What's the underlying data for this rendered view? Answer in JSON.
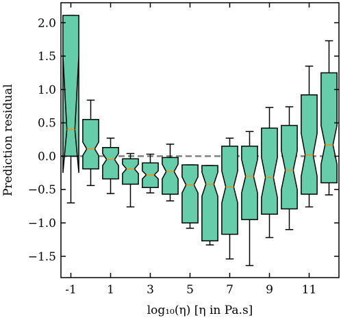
{
  "chart_data": {
    "type": "boxplot",
    "notched": true,
    "xlabel": "log₁₀(η)  [η in Pa.s]",
    "ylabel": "Prediction residual",
    "xlim": [
      -1.5,
      12.5
    ],
    "ylim": [
      -1.82,
      2.3
    ],
    "x_ticks": [
      -1,
      1,
      3,
      5,
      7,
      9,
      11
    ],
    "x_tick_labels": [
      "-1",
      "1",
      "3",
      "5",
      "7",
      "9",
      "11"
    ],
    "y_ticks": [
      -1.5,
      -1.0,
      -0.5,
      0.0,
      0.5,
      1.0,
      1.5,
      2.0
    ],
    "y_tick_labels": [
      "−1.5",
      "−1.0",
      "−0.5",
      "0.0",
      "0.5",
      "1.0",
      "1.5",
      "2.0"
    ],
    "reference_line_y": 0,
    "colors": {
      "box_fill": "#66cdaa",
      "median": "#ff8c00",
      "outline": "#000000",
      "reference_line": "#808080"
    },
    "boxes": [
      {
        "x": -1,
        "whislo": -0.7,
        "q1": 0.0,
        "notch_lo": 1.5,
        "med": 0.4,
        "notch_hi": -0.25,
        "q3": 2.11,
        "whishi": 2.11
      },
      {
        "x": 0,
        "whislo": -0.44,
        "q1": -0.19,
        "notch_lo": 0.01,
        "med": 0.11,
        "notch_hi": 0.21,
        "q3": 0.55,
        "whishi": 0.84
      },
      {
        "x": 1,
        "whislo": -0.56,
        "q1": -0.34,
        "notch_lo": -0.14,
        "med": -0.05,
        "notch_hi": 0.04,
        "q3": 0.13,
        "whishi": 0.27
      },
      {
        "x": 2,
        "whislo": -0.76,
        "q1": -0.42,
        "notch_lo": -0.26,
        "med": -0.19,
        "notch_hi": -0.12,
        "q3": -0.04,
        "whishi": 0.04
      },
      {
        "x": 3,
        "whislo": -0.55,
        "q1": -0.47,
        "notch_lo": -0.34,
        "med": -0.28,
        "notch_hi": -0.22,
        "q3": -0.1,
        "whishi": 0.03
      },
      {
        "x": 4,
        "whislo": -0.67,
        "q1": -0.57,
        "notch_lo": -0.34,
        "med": -0.23,
        "notch_hi": -0.12,
        "q3": -0.02,
        "whishi": 0.18
      },
      {
        "x": 5,
        "whislo": -1.08,
        "q1": -1.0,
        "notch_lo": -0.55,
        "med": -0.43,
        "notch_hi": -0.31,
        "q3": -0.13,
        "whishi": -0.13
      },
      {
        "x": 6,
        "whislo": -1.33,
        "q1": -1.27,
        "notch_lo": -0.6,
        "med": -0.42,
        "notch_hi": -0.24,
        "q3": -0.14,
        "whishi": -0.14
      },
      {
        "x": 7,
        "whislo": -1.54,
        "q1": -1.17,
        "notch_lo": -0.7,
        "med": -0.46,
        "notch_hi": -0.22,
        "q3": 0.15,
        "whishi": 0.27
      },
      {
        "x": 8,
        "whislo": -1.64,
        "q1": -0.95,
        "notch_lo": -0.55,
        "med": -0.3,
        "notch_hi": -0.05,
        "q3": 0.15,
        "whishi": 0.37
      },
      {
        "x": 9,
        "whislo": -1.22,
        "q1": -0.87,
        "notch_lo": -0.62,
        "med": -0.32,
        "notch_hi": -0.02,
        "q3": 0.42,
        "whishi": 0.73
      },
      {
        "x": 10,
        "whislo": -1.1,
        "q1": -0.79,
        "notch_lo": -0.5,
        "med": -0.21,
        "notch_hi": 0.08,
        "q3": 0.46,
        "whishi": 0.74
      },
      {
        "x": 11,
        "whislo": -0.76,
        "q1": -0.57,
        "notch_lo": -0.3,
        "med": 0.02,
        "notch_hi": 0.34,
        "q3": 0.92,
        "whishi": 1.35
      },
      {
        "x": 12,
        "whislo": -0.58,
        "q1": -0.4,
        "notch_lo": -0.12,
        "med": 0.17,
        "notch_hi": 0.46,
        "q3": 1.25,
        "whishi": 1.73
      }
    ]
  }
}
